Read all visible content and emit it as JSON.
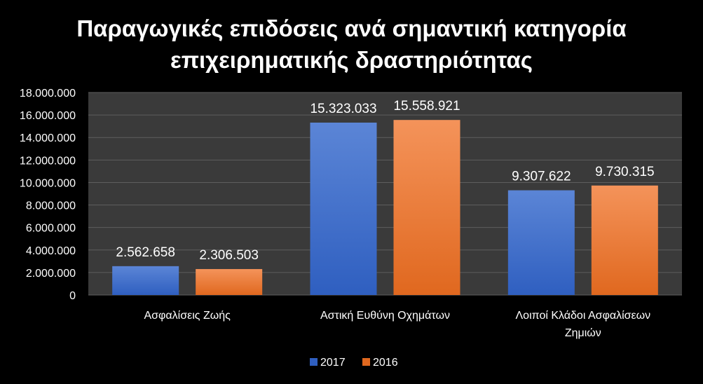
{
  "chart_data": {
    "type": "bar",
    "title_lines": [
      "Παραγωγικές επιδόσεις ανά σημαντική κατηγορία",
      "επιχειρηματικής δραστηριότητας"
    ],
    "categories": [
      [
        "Ασφαλίσεις Ζωής"
      ],
      [
        "Αστική Ευθύνη Οχημάτων"
      ],
      [
        "Λοιποί Κλάδοι Ασφαλίσεων",
        "Ζημιών"
      ]
    ],
    "series": [
      {
        "name": "2017",
        "values": [
          2562658,
          15323033,
          9307622
        ],
        "labels": [
          "2.562.658",
          "15.323.033",
          "9.307.622"
        ],
        "color_top": "#5b85d6",
        "color_bottom": "#2f5fc0"
      },
      {
        "name": "2016",
        "values": [
          2306503,
          15558921,
          9730315
        ],
        "labels": [
          "2.306.503",
          "15.558.921",
          "9.730.315"
        ],
        "color_top": "#f4935a",
        "color_bottom": "#e0681f"
      }
    ],
    "ylim": [
      0,
      18000000
    ],
    "yticks": [
      0,
      2000000,
      4000000,
      6000000,
      8000000,
      10000000,
      12000000,
      14000000,
      16000000,
      18000000
    ],
    "ytick_labels": [
      "0",
      "2.000.000",
      "4.000.000",
      "6.000.000",
      "8.000.000",
      "10.000.000",
      "12.000.000",
      "14.000.000",
      "16.000.000",
      "18.000.000"
    ],
    "grid": true,
    "legend_position": "bottom",
    "plot_background": "#3a3a3a"
  }
}
